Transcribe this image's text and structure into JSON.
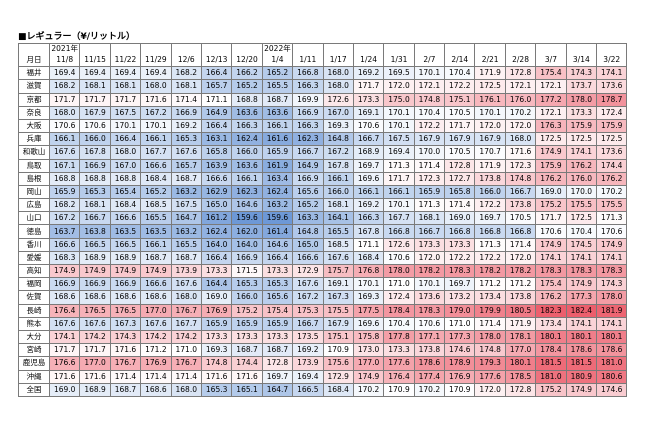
{
  "title": "■レギュラー（¥/リットル）",
  "table": {
    "corner": "月日",
    "color_scale": {
      "low": "#6d98d6",
      "mid": "#ffffff",
      "high": "#ec5e6c"
    },
    "columns": [
      {
        "year": "2021年",
        "date": "11/8"
      },
      {
        "date": "11/15"
      },
      {
        "date": "11/22"
      },
      {
        "date": "11/29"
      },
      {
        "date": "12/6"
      },
      {
        "date": "12/13"
      },
      {
        "date": "12/20"
      },
      {
        "year": "2022年",
        "date": "1/4"
      },
      {
        "date": "1/11"
      },
      {
        "date": "1/17"
      },
      {
        "date": "1/24"
      },
      {
        "date": "1/31"
      },
      {
        "date": "2/7"
      },
      {
        "date": "2/14"
      },
      {
        "date": "2/21"
      },
      {
        "date": "2/28"
      },
      {
        "date": "3/7"
      },
      {
        "date": "3/14"
      },
      {
        "date": "3/22"
      }
    ],
    "rows": [
      {
        "name": "福井",
        "values": [
          "169.4",
          "169.4",
          "169.4",
          "169.4",
          "168.2",
          "166.4",
          "166.2",
          "165.2",
          "166.8",
          "168.0",
          "169.2",
          "169.5",
          "170.1",
          "170.4",
          "171.9",
          "172.8",
          "175.4",
          "174.3",
          "174.1"
        ]
      },
      {
        "name": "滋賀",
        "values": [
          "168.2",
          "168.1",
          "168.1",
          "168.0",
          "168.1",
          "165.7",
          "165.2",
          "165.5",
          "166.3",
          "168.0",
          "171.7",
          "172.0",
          "172.1",
          "172.2",
          "172.5",
          "172.1",
          "172.1",
          "173.7",
          "173.6"
        ]
      },
      {
        "name": "京都",
        "values": [
          "171.7",
          "171.7",
          "171.7",
          "171.6",
          "171.4",
          "171.1",
          "168.8",
          "168.7",
          "169.9",
          "172.6",
          "173.3",
          "175.0",
          "174.8",
          "175.1",
          "176.1",
          "176.0",
          "177.2",
          "178.0",
          "178.7"
        ]
      },
      {
        "name": "奈良",
        "values": [
          "168.0",
          "167.9",
          "167.5",
          "167.2",
          "166.9",
          "164.9",
          "163.6",
          "163.6",
          "166.9",
          "167.0",
          "169.1",
          "170.1",
          "170.4",
          "170.5",
          "170.1",
          "170.2",
          "172.1",
          "173.3",
          "172.4"
        ]
      },
      {
        "name": "大阪",
        "values": [
          "170.6",
          "170.6",
          "170.1",
          "170.1",
          "169.2",
          "166.4",
          "166.3",
          "166.1",
          "166.3",
          "169.3",
          "170.6",
          "170.1",
          "172.2",
          "171.7",
          "172.0",
          "172.0",
          "176.3",
          "175.9",
          "175.9"
        ]
      },
      {
        "name": "兵庫",
        "values": [
          "166.1",
          "166.0",
          "166.4",
          "166.1",
          "165.3",
          "163.1",
          "162.4",
          "161.6",
          "162.3",
          "164.8",
          "166.7",
          "167.5",
          "167.9",
          "167.9",
          "167.9",
          "168.0",
          "172.5",
          "172.5",
          "172.5"
        ]
      },
      {
        "name": "和歌山",
        "values": [
          "167.6",
          "167.8",
          "168.0",
          "167.7",
          "167.6",
          "165.8",
          "166.0",
          "165.9",
          "166.7",
          "167.2",
          "168.9",
          "169.4",
          "170.0",
          "170.5",
          "170.7",
          "171.6",
          "174.9",
          "174.1",
          "173.6"
        ]
      },
      {
        "name": "鳥取",
        "values": [
          "167.1",
          "166.9",
          "167.0",
          "166.6",
          "165.7",
          "163.9",
          "163.6",
          "161.9",
          "164.9",
          "167.8",
          "169.7",
          "171.3",
          "171.4",
          "172.8",
          "171.9",
          "172.3",
          "175.9",
          "176.2",
          "174.4"
        ]
      },
      {
        "name": "島根",
        "values": [
          "168.8",
          "168.8",
          "168.8",
          "168.4",
          "168.7",
          "166.6",
          "166.1",
          "163.4",
          "166.9",
          "166.1",
          "169.6",
          "171.7",
          "172.3",
          "172.7",
          "173.8",
          "174.8",
          "176.2",
          "176.0",
          "176.2"
        ]
      },
      {
        "name": "岡山",
        "values": [
          "165.9",
          "165.3",
          "165.4",
          "165.2",
          "163.2",
          "162.9",
          "162.3",
          "162.4",
          "165.6",
          "166.0",
          "166.1",
          "166.1",
          "165.9",
          "165.8",
          "166.0",
          "166.7",
          "169.0",
          "170.0",
          "170.2"
        ]
      },
      {
        "name": "広島",
        "values": [
          "168.2",
          "168.1",
          "168.4",
          "168.5",
          "167.5",
          "165.0",
          "164.6",
          "163.2",
          "165.2",
          "168.1",
          "169.2",
          "170.1",
          "171.3",
          "171.4",
          "172.2",
          "173.8",
          "175.2",
          "175.5",
          "175.5"
        ]
      },
      {
        "name": "山口",
        "values": [
          "167.2",
          "166.7",
          "166.6",
          "165.5",
          "164.7",
          "161.2",
          "159.6",
          "159.6",
          "163.3",
          "164.1",
          "166.3",
          "167.7",
          "168.1",
          "169.0",
          "169.7",
          "170.5",
          "171.7",
          "172.5",
          "171.3"
        ]
      },
      {
        "name": "徳島",
        "values": [
          "163.7",
          "163.8",
          "163.5",
          "163.5",
          "163.2",
          "162.4",
          "162.0",
          "161.4",
          "164.8",
          "165.5",
          "167.8",
          "166.8",
          "166.7",
          "166.8",
          "166.8",
          "166.8",
          "170.6",
          "170.4",
          "170.6"
        ]
      },
      {
        "name": "香川",
        "values": [
          "166.6",
          "166.5",
          "166.5",
          "166.1",
          "165.5",
          "164.0",
          "164.0",
          "164.6",
          "165.0",
          "168.5",
          "171.1",
          "172.6",
          "173.3",
          "173.3",
          "171.3",
          "171.4",
          "174.9",
          "174.5",
          "174.9"
        ]
      },
      {
        "name": "愛媛",
        "values": [
          "168.3",
          "168.9",
          "168.9",
          "168.7",
          "168.7",
          "166.4",
          "166.9",
          "166.4",
          "166.6",
          "167.6",
          "168.4",
          "170.6",
          "172.0",
          "172.2",
          "172.2",
          "172.0",
          "174.1",
          "174.1",
          "174.1"
        ]
      },
      {
        "name": "高知",
        "values": [
          "174.9",
          "174.9",
          "174.9",
          "174.9",
          "173.9",
          "173.3",
          "171.5",
          "173.3",
          "172.9",
          "175.7",
          "176.8",
          "178.0",
          "178.2",
          "178.3",
          "178.2",
          "178.2",
          "178.3",
          "178.3",
          "178.3"
        ]
      },
      {
        "name": "福岡",
        "values": [
          "166.9",
          "166.9",
          "166.9",
          "166.6",
          "167.6",
          "164.4",
          "165.3",
          "165.3",
          "167.6",
          "169.1",
          "170.1",
          "171.0",
          "170.1",
          "169.7",
          "171.2",
          "171.2",
          "175.4",
          "174.9",
          "174.3"
        ]
      },
      {
        "name": "佐賀",
        "values": [
          "168.6",
          "168.6",
          "168.6",
          "168.6",
          "168.0",
          "169.0",
          "166.0",
          "165.6",
          "167.2",
          "167.3",
          "169.3",
          "172.4",
          "173.6",
          "173.2",
          "173.4",
          "173.8",
          "176.2",
          "177.3",
          "178.0"
        ]
      },
      {
        "name": "長崎",
        "values": [
          "176.4",
          "176.5",
          "176.5",
          "177.0",
          "176.7",
          "176.9",
          "175.2",
          "175.4",
          "175.3",
          "175.5",
          "177.5",
          "178.4",
          "178.3",
          "179.0",
          "179.9",
          "180.5",
          "182.3",
          "182.4",
          "181.9"
        ]
      },
      {
        "name": "熊本",
        "values": [
          "167.6",
          "167.6",
          "167.3",
          "167.6",
          "167.7",
          "165.9",
          "165.9",
          "165.9",
          "166.7",
          "167.9",
          "169.6",
          "170.4",
          "170.6",
          "171.0",
          "171.4",
          "171.9",
          "173.4",
          "174.1",
          "174.1"
        ]
      },
      {
        "name": "大分",
        "values": [
          "174.1",
          "174.2",
          "174.3",
          "174.2",
          "174.2",
          "173.3",
          "173.3",
          "173.3",
          "173.5",
          "175.1",
          "175.8",
          "177.8",
          "177.1",
          "177.3",
          "178.0",
          "178.1",
          "180.1",
          "180.1",
          "180.1"
        ]
      },
      {
        "name": "宮崎",
        "values": [
          "171.7",
          "171.7",
          "171.6",
          "171.2",
          "171.0",
          "169.3",
          "168.7",
          "168.7",
          "169.2",
          "170.9",
          "173.0",
          "173.3",
          "173.8",
          "174.6",
          "174.8",
          "177.0",
          "178.4",
          "178.6",
          "178.6"
        ]
      },
      {
        "name": "鹿児島",
        "values": [
          "176.6",
          "177.0",
          "176.7",
          "176.9",
          "176.7",
          "174.8",
          "174.4",
          "172.8",
          "173.9",
          "175.6",
          "177.0",
          "177.6",
          "178.6",
          "178.9",
          "179.3",
          "180.1",
          "181.5",
          "181.5",
          "181.0"
        ]
      },
      {
        "name": "沖縄",
        "values": [
          "171.6",
          "171.6",
          "171.4",
          "171.4",
          "171.4",
          "171.6",
          "171.6",
          "169.7",
          "169.4",
          "172.9",
          "174.9",
          "176.4",
          "177.4",
          "176.9",
          "177.6",
          "178.5",
          "181.0",
          "180.9",
          "180.6"
        ]
      },
      {
        "name": "全国",
        "values": [
          "169.0",
          "168.9",
          "168.7",
          "168.6",
          "168.0",
          "165.3",
          "165.1",
          "164.7",
          "166.5",
          "168.4",
          "170.2",
          "170.9",
          "170.2",
          "170.9",
          "172.0",
          "172.8",
          "175.2",
          "174.9",
          "174.6"
        ]
      }
    ]
  }
}
